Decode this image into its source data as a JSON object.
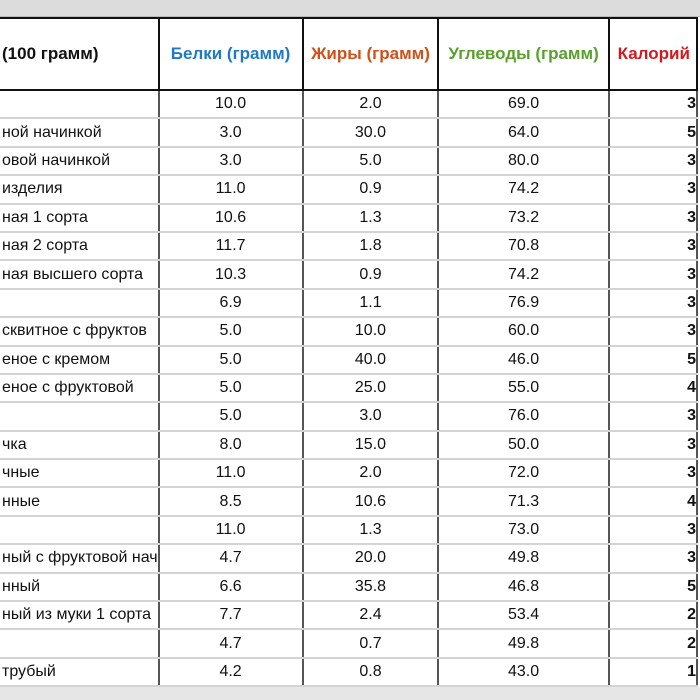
{
  "colors": {
    "protein": "#1f78c8",
    "fat": "#d0501a",
    "carbs": "#5aa02c",
    "calories": "#d4181e"
  },
  "headers": [
    "(100 грамм)",
    "Белки (грамм)",
    "Жиры (грамм)",
    "Углеводы (грамм)",
    "Калорий"
  ],
  "rows": [
    [
      "",
      "10.0",
      "2.0",
      "69.0",
      "3"
    ],
    [
      "ной начинкой",
      "3.0",
      "30.0",
      "64.0",
      "5"
    ],
    [
      "овой начинкой",
      "3.0",
      "5.0",
      "80.0",
      "3"
    ],
    [
      "изделия",
      "11.0",
      "0.9",
      "74.2",
      "3"
    ],
    [
      "ная 1 сорта",
      "10.6",
      "1.3",
      "73.2",
      "3"
    ],
    [
      "ная 2 сорта",
      "11.7",
      "1.8",
      "70.8",
      "3"
    ],
    [
      "ная высшего сорта",
      "10.3",
      "0.9",
      "74.2",
      "3"
    ],
    [
      "",
      "6.9",
      "1.1",
      "76.9",
      "3"
    ],
    [
      "сквитное с фруктов",
      "5.0",
      "10.0",
      "60.0",
      "3"
    ],
    [
      "еное с кремом",
      "5.0",
      "40.0",
      "46.0",
      "5"
    ],
    [
      "еное с фруктовой",
      "5.0",
      "25.0",
      "55.0",
      "4"
    ],
    [
      "",
      "5.0",
      "3.0",
      "76.0",
      "3"
    ],
    [
      "чка",
      "8.0",
      "15.0",
      "50.0",
      "3"
    ],
    [
      "чные",
      "11.0",
      "2.0",
      "72.0",
      "3"
    ],
    [
      "нные",
      "8.5",
      "10.6",
      "71.3",
      "4"
    ],
    [
      "",
      "11.0",
      "1.3",
      "73.0",
      "3"
    ],
    [
      "ный с фруктовой нач",
      "4.7",
      "20.0",
      "49.8",
      "3"
    ],
    [
      "нный",
      "6.6",
      "35.8",
      "46.8",
      "5"
    ],
    [
      "ный из муки 1 сорта",
      "7.7",
      "2.4",
      "53.4",
      "2"
    ],
    [
      "",
      "4.7",
      "0.7",
      "49.8",
      "2"
    ],
    [
      "трубый",
      "4.2",
      "0.8",
      "43.0",
      "1"
    ]
  ]
}
